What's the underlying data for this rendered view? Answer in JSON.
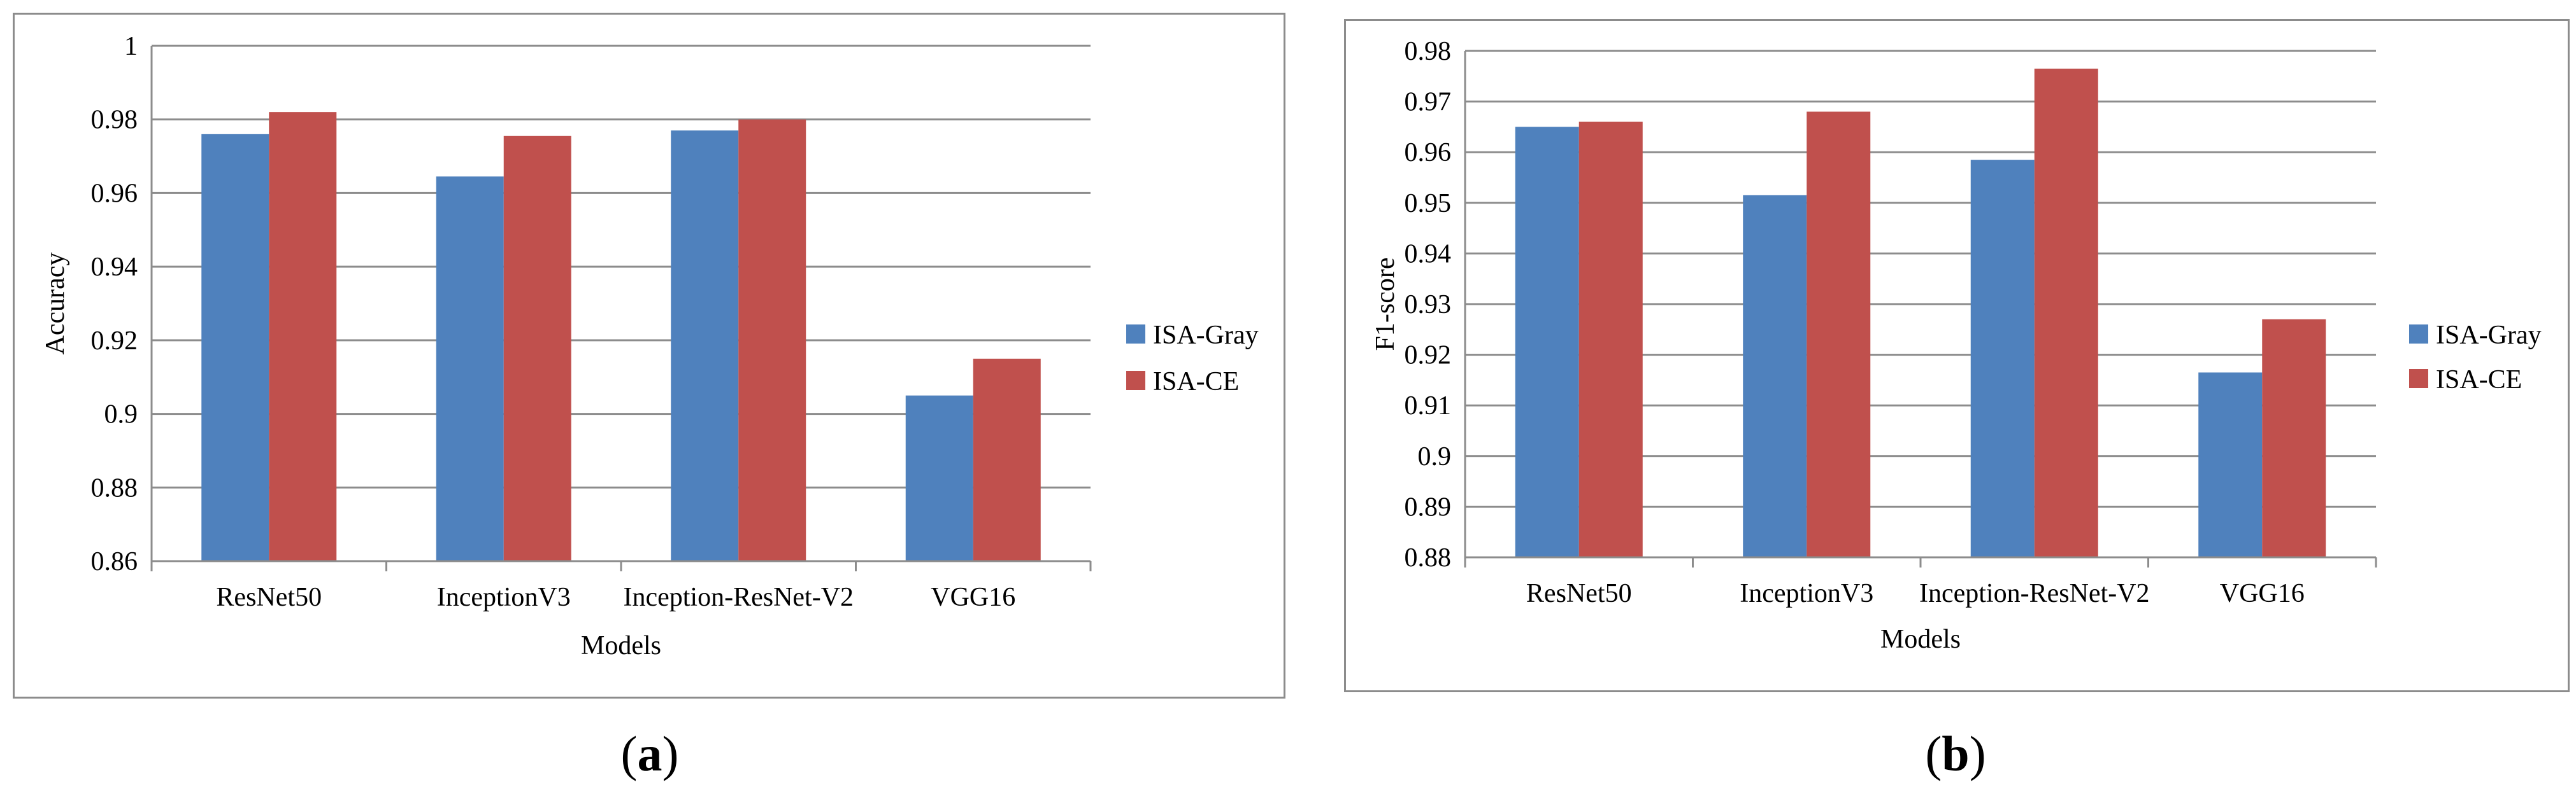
{
  "colors": {
    "isa_gray": "#4f81bd",
    "isa_ce": "#c0504d",
    "grid": "#8c8c8c",
    "axis": "#8c8c8c"
  },
  "chart_data": [
    {
      "id": "a",
      "type": "bar",
      "panel_label_open": "(",
      "panel_label_letter": "a",
      "panel_label_close": ")",
      "title": "",
      "xlabel": "Models",
      "ylabel": "Accuracy",
      "categories": [
        "ResNet50",
        "InceptionV3",
        "Inception-ResNet-V2",
        "VGG16"
      ],
      "ylim": [
        0.86,
        1.0
      ],
      "yticks": [
        0.86,
        0.88,
        0.9,
        0.92,
        0.94,
        0.96,
        0.98,
        1.0
      ],
      "ytick_labels": [
        "0.86",
        "0.88",
        "0.9",
        "0.92",
        "0.94",
        "0.96",
        "0.98",
        "1"
      ],
      "series": [
        {
          "name": "ISA-Gray",
          "values": [
            0.976,
            0.9645,
            0.977,
            0.905
          ]
        },
        {
          "name": "ISA-CE",
          "values": [
            0.982,
            0.9755,
            0.98,
            0.915
          ]
        }
      ],
      "legend_position": "right",
      "grid": true
    },
    {
      "id": "b",
      "type": "bar",
      "panel_label_open": "(",
      "panel_label_letter": "b",
      "panel_label_close": ")",
      "title": "",
      "xlabel": "Models",
      "ylabel": "F1-score",
      "categories": [
        "ResNet50",
        "InceptionV3",
        "Inception-ResNet-V2",
        "VGG16"
      ],
      "ylim": [
        0.88,
        0.98
      ],
      "yticks": [
        0.88,
        0.89,
        0.9,
        0.91,
        0.92,
        0.93,
        0.94,
        0.95,
        0.96,
        0.97,
        0.98
      ],
      "ytick_labels": [
        "0.88",
        "0.89",
        "0.9",
        "0.91",
        "0.92",
        "0.93",
        "0.94",
        "0.95",
        "0.96",
        "0.97",
        "0.98"
      ],
      "series": [
        {
          "name": "ISA-Gray",
          "values": [
            0.965,
            0.9515,
            0.9585,
            0.9165
          ]
        },
        {
          "name": "ISA-CE",
          "values": [
            0.966,
            0.968,
            0.9765,
            0.927
          ]
        }
      ],
      "legend_position": "right",
      "grid": true
    }
  ]
}
